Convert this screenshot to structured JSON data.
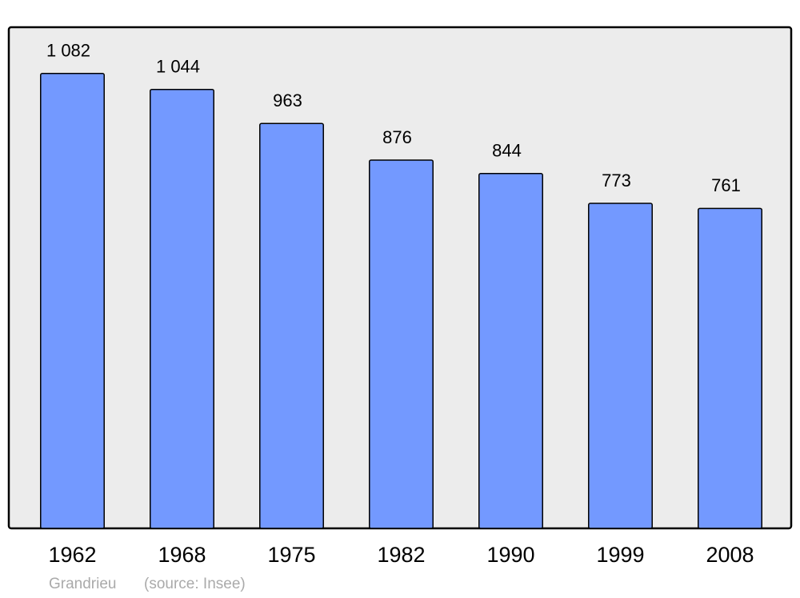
{
  "chart_data": {
    "type": "bar",
    "categories": [
      "1962",
      "1968",
      "1975",
      "1982",
      "1990",
      "1999",
      "2008"
    ],
    "values": [
      1082,
      1044,
      963,
      876,
      844,
      773,
      761
    ],
    "value_labels": [
      "1 082",
      "1 044",
      "963",
      "876",
      "844",
      "773",
      "761"
    ],
    "color": "#7399ff",
    "ylim": [
      0,
      1192
    ],
    "caption": "Grandrieu",
    "source": "(source: Insee)"
  }
}
